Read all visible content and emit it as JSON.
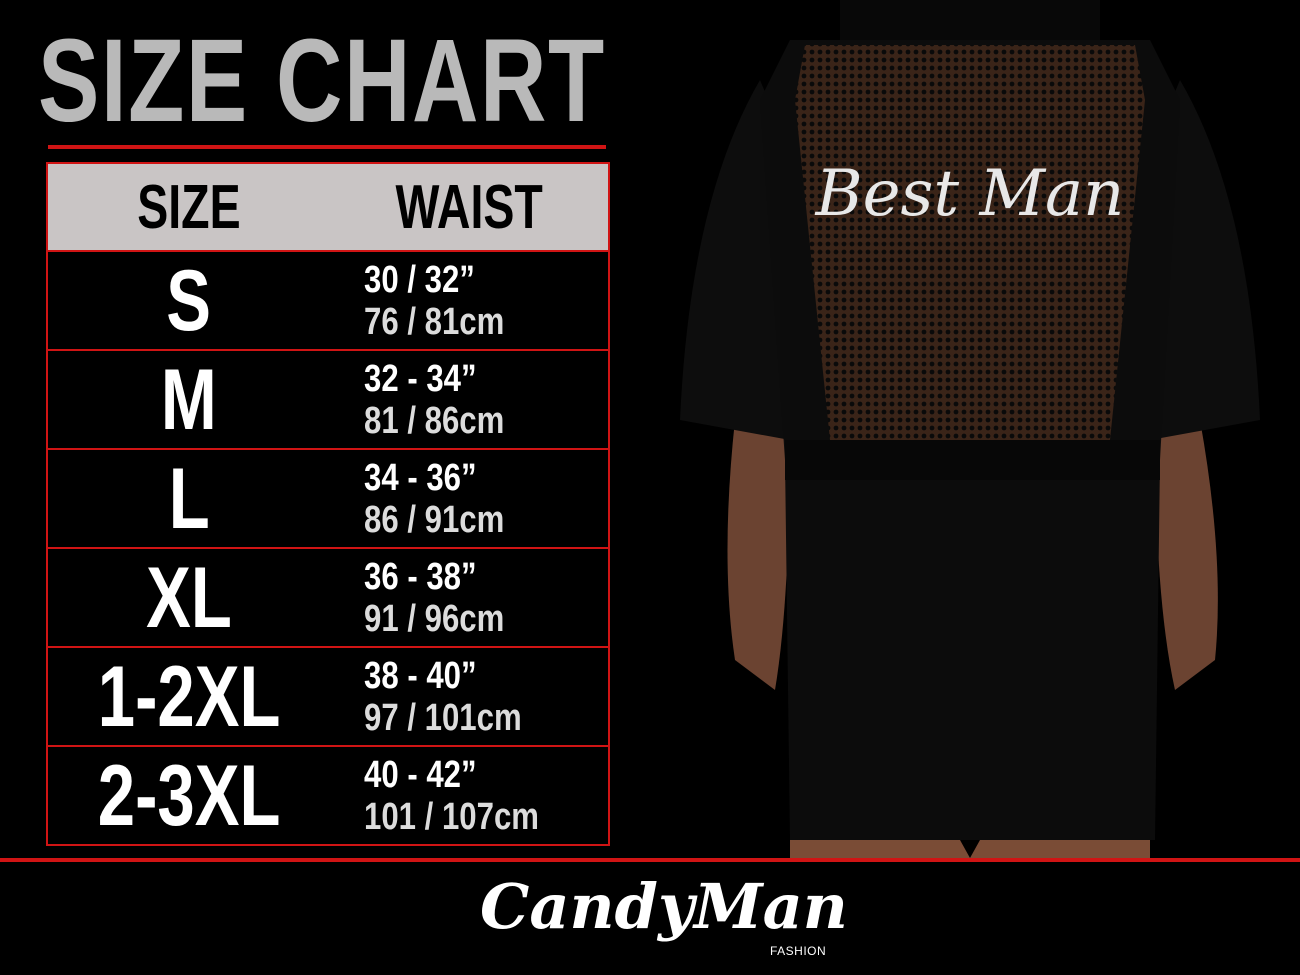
{
  "title": "SIZE CHART",
  "table": {
    "headers": {
      "size": "SIZE",
      "waist": "WAIST"
    },
    "rows": [
      {
        "size": "S",
        "waist_in": "30 / 32”",
        "waist_cm": "76 / 81cm"
      },
      {
        "size": "M",
        "waist_in": "32 - 34”",
        "waist_cm": "81 / 86cm"
      },
      {
        "size": "L",
        "waist_in": "34 - 36”",
        "waist_cm": "86 / 91cm"
      },
      {
        "size": "XL",
        "waist_in": "36 - 38”",
        "waist_cm": "91 / 96cm"
      },
      {
        "size": "1-2XL",
        "waist_in": "38 - 40”",
        "waist_cm": "97 / 101cm"
      },
      {
        "size": "2-3XL",
        "waist_in": "40 - 42”",
        "waist_cm": "101 / 107cm"
      }
    ]
  },
  "product_print": "Best Man",
  "brand": {
    "name": "CandyMan",
    "sub": "FASHION"
  },
  "colors": {
    "accent_red": "#d01414",
    "header_gray": "#c9c5c5",
    "title_gray": "#b9b9b9",
    "background": "#000000"
  }
}
